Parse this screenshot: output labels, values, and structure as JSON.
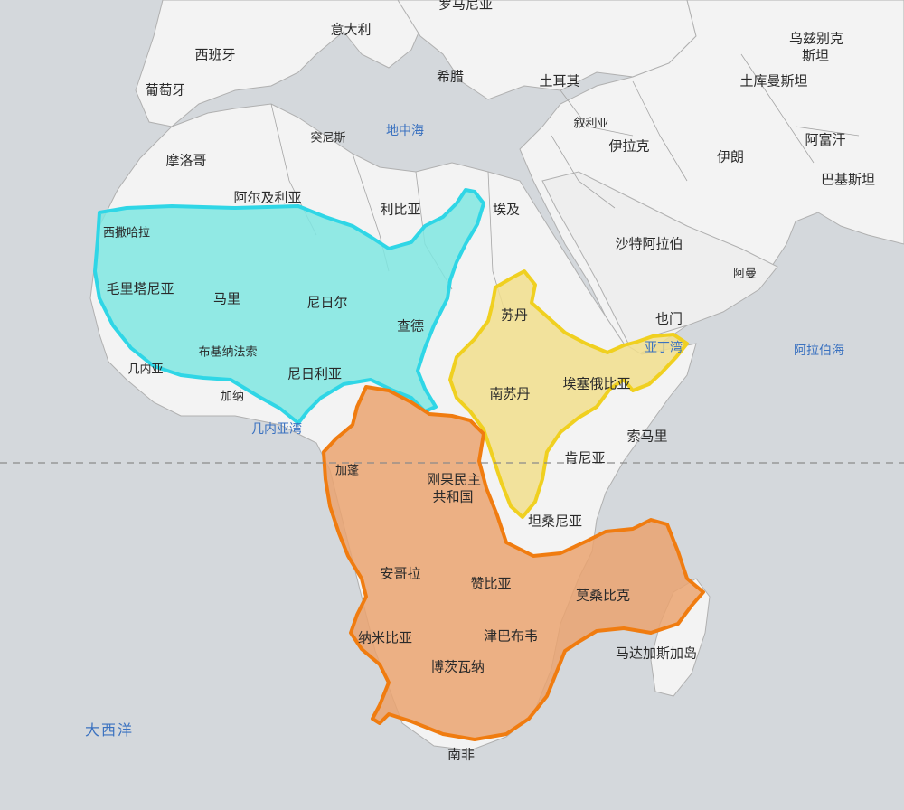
{
  "map": {
    "colors": {
      "water": "#d4d8dc",
      "land": "#f3f3f3",
      "border": "#9a9a9a",
      "usa_fill": "#7fe6e0",
      "usa_outline": "#2fd6e6",
      "india_fill": "#f1de8c",
      "india_outline": "#f0d020",
      "china_fill": "#eaa370",
      "china_outline": "#f07c10",
      "equator": "#8a8a8a",
      "water_label": "#3b72c0"
    },
    "overlays": [
      {
        "id": "usa",
        "color": "#2fd6e6"
      },
      {
        "id": "india",
        "color": "#f0d020"
      },
      {
        "id": "china",
        "color": "#f07c10"
      }
    ],
    "labels": {
      "top_cut": "罗马尼亚",
      "italy": "意大利",
      "spain": "西班牙",
      "portugal": "葡萄牙",
      "greece": "希腊",
      "turkey": "土耳其",
      "uzbekistan_1": "乌兹别克",
      "uzbekistan_2": "斯坦",
      "turkmenistan": "土库曼斯坦",
      "tunisia": "突尼斯",
      "mediterranean": "地中海",
      "syria": "叙利亚",
      "iraq": "伊拉克",
      "iran": "伊朗",
      "afghanistan": "阿富汗",
      "pakistan": "巴基斯坦",
      "morocco": "摩洛哥",
      "algeria": "阿尔及利亚",
      "libya": "利比亚",
      "egypt": "埃及",
      "saudi": "沙特阿拉伯",
      "oman": "阿曼",
      "w_sahara": "西撒哈拉",
      "mauritania": "毛里塔尼亚",
      "mali": "马里",
      "niger": "尼日尔",
      "chad": "查德",
      "sudan": "苏丹",
      "yemen": "也门",
      "arabian_sea": "阿拉伯海",
      "burkina": "布基纳法索",
      "guinea": "几内亚",
      "nigeria": "尼日利亚",
      "ghana": "加纳",
      "south_sudan": "南苏丹",
      "ethiopia": "埃塞俄比亚",
      "somalia_text": "亚丁湾",
      "somalia": "索马里",
      "gulf_guinea": "几内亚湾",
      "gabon": "加蓬",
      "drc_1": "刚果民主",
      "drc_2": "共和国",
      "kenya": "肯尼亚",
      "tanzania": "坦桑尼亚",
      "angola": "安哥拉",
      "zambia": "赞比亚",
      "mozambique": "莫桑比克",
      "namibia": "纳米比亚",
      "zimbabwe": "津巴布韦",
      "madagascar": "马达加斯加岛",
      "botswana": "博茨瓦纳",
      "atlantic": "大西洋",
      "south_africa": "南非"
    }
  }
}
